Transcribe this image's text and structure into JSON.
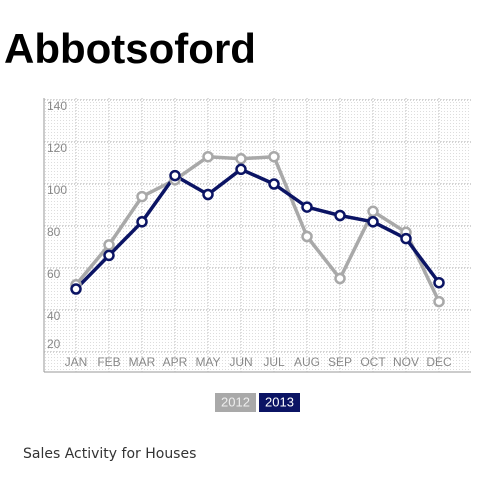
{
  "title": "Abbotsoford",
  "caption": "Sales Activity for Houses",
  "chart_data": {
    "type": "line",
    "categories": [
      "JAN",
      "FEB",
      "MAR",
      "APR",
      "MAY",
      "JUN",
      "JUL",
      "AUG",
      "SEP",
      "OCT",
      "NOV",
      "DEC"
    ],
    "series": [
      {
        "name": "2012",
        "color": "#a9a9a9",
        "values": [
          52,
          71,
          94,
          102,
          113,
          112,
          113,
          75,
          55,
          87,
          77,
          44
        ]
      },
      {
        "name": "2013",
        "color": "#0b1464",
        "values": [
          50,
          66,
          82,
          104,
          95,
          107,
          100,
          89,
          85,
          82,
          74,
          53
        ]
      }
    ],
    "ylim": [
      20,
      140
    ],
    "yticks": [
      20,
      40,
      60,
      80,
      100,
      120,
      140
    ],
    "grid": true
  }
}
